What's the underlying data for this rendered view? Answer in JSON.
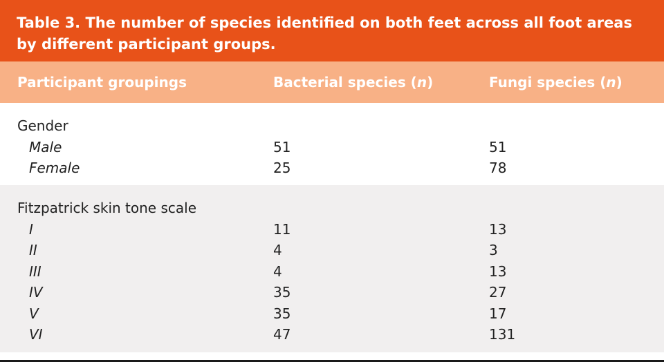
{
  "title": {
    "line1": "Table 3. The number of species identified on both feet across all foot areas",
    "line2": "by different participant groups."
  },
  "header": {
    "col1": "Participant groupings",
    "col2_prefix": "Bacterial species (",
    "col2_n": "n",
    "col2_suffix": ")",
    "col3_prefix": "Fungi species (",
    "col3_n": "n",
    "col3_suffix": ")"
  },
  "sections": [
    {
      "label": "Gender",
      "rows": [
        {
          "label": "Male",
          "bacterial": "51",
          "fungi": "51"
        },
        {
          "label": "Female",
          "bacterial": "25",
          "fungi": "78"
        }
      ]
    },
    {
      "label": "Fitzpatrick skin tone scale",
      "rows": [
        {
          "label": "I",
          "bacterial": "11",
          "fungi": "13"
        },
        {
          "label": "II",
          "bacterial": "4",
          "fungi": "3"
        },
        {
          "label": "III",
          "bacterial": "4",
          "fungi": "13"
        },
        {
          "label": "IV",
          "bacterial": "35",
          "fungi": "27"
        },
        {
          "label": "V",
          "bacterial": "35",
          "fungi": "17"
        },
        {
          "label": "VI",
          "bacterial": "47",
          "fungi": "131"
        }
      ]
    }
  ],
  "colors": {
    "title_bg": "#e85219",
    "header_bg": "#f8b186",
    "alt_row_bg": "#f1efef"
  }
}
